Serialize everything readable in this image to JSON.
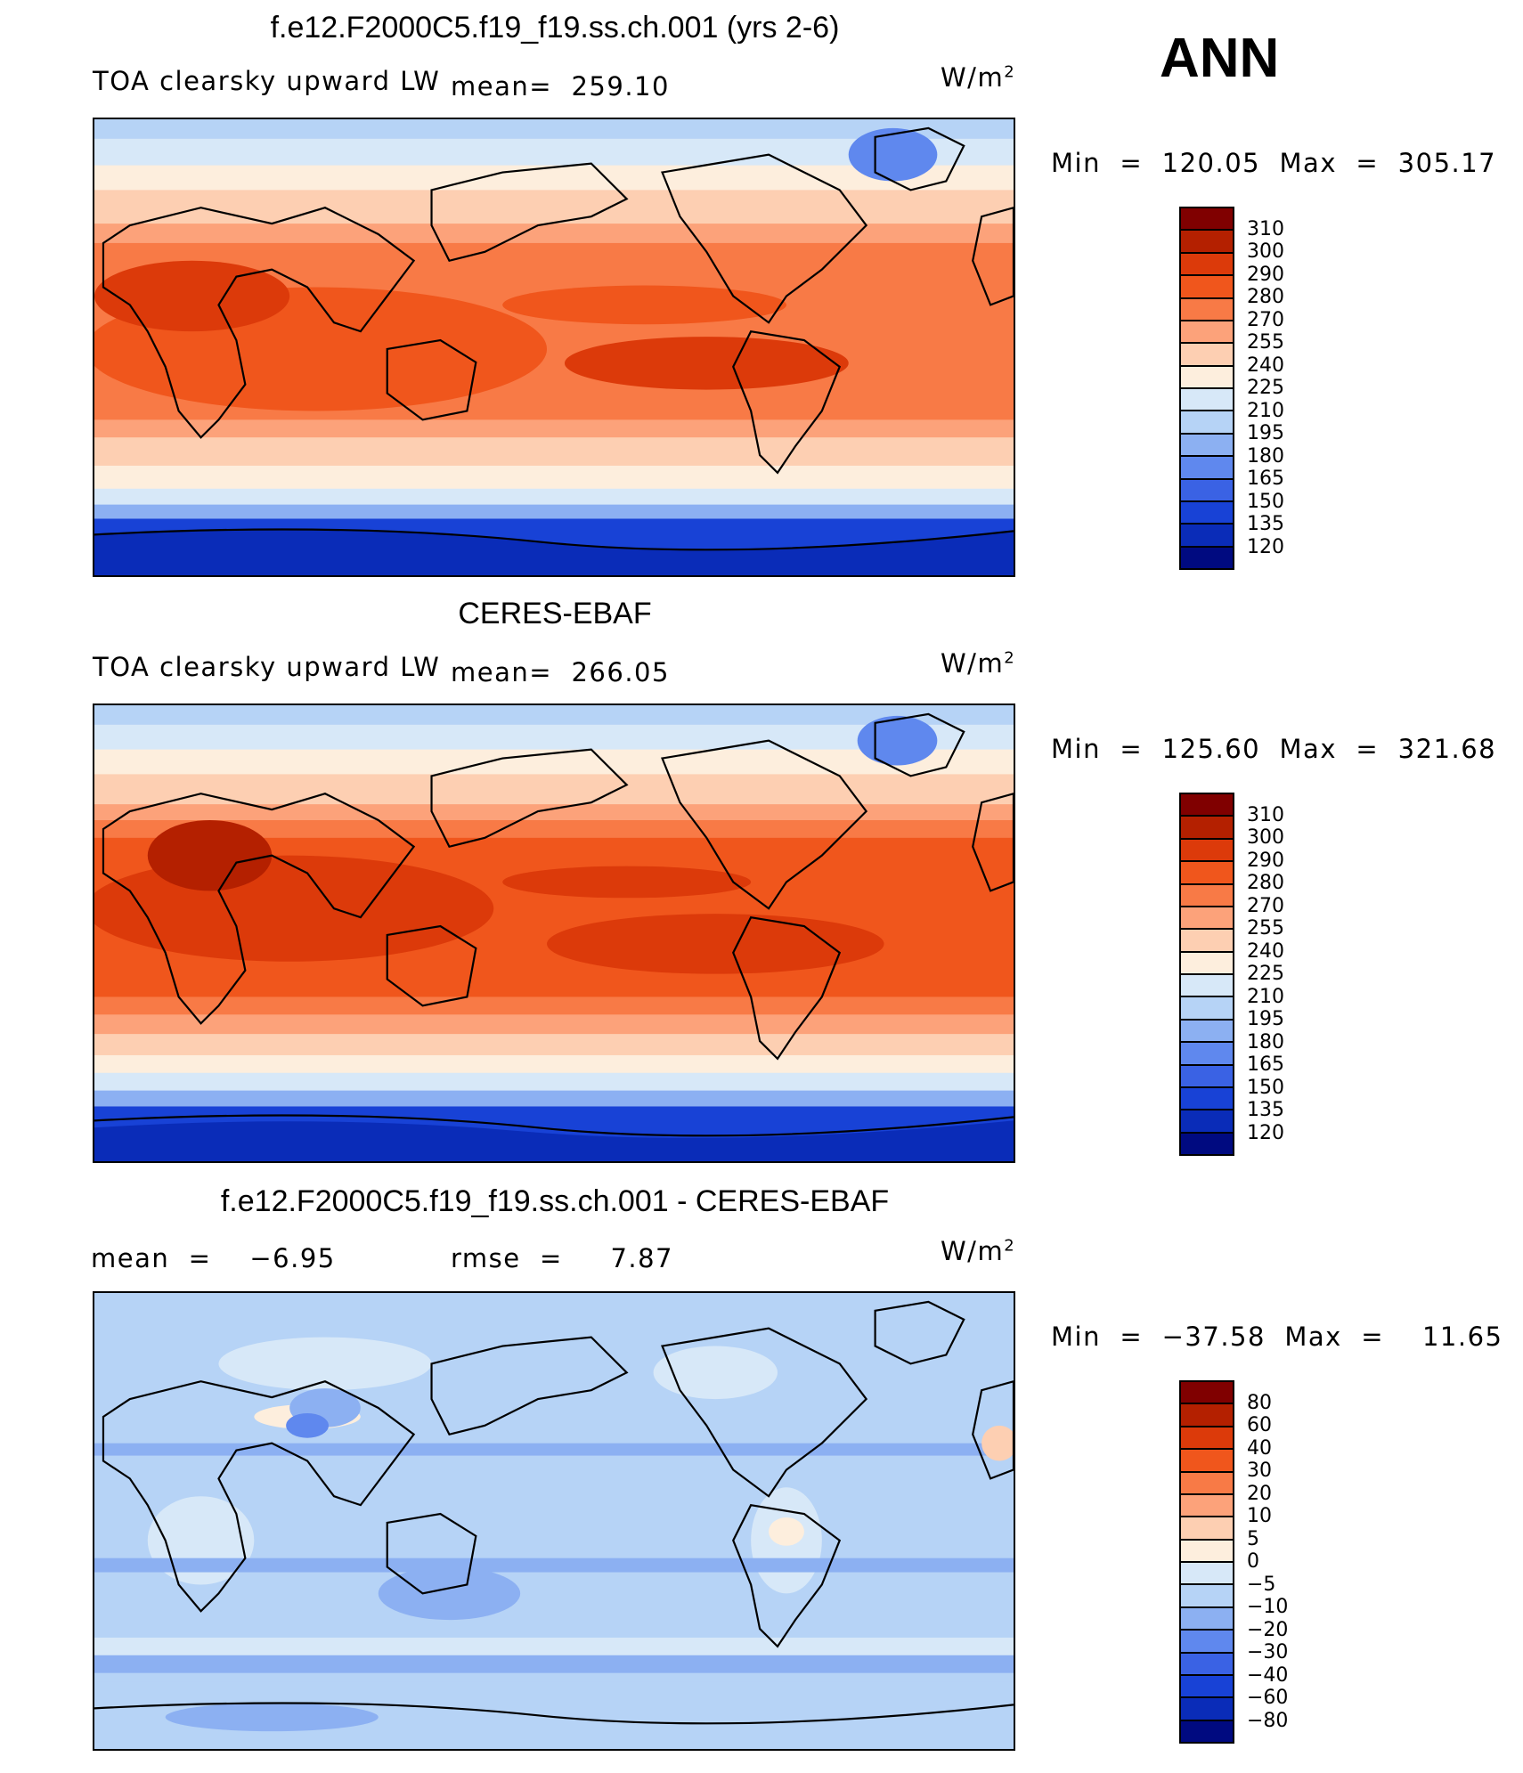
{
  "season": "ANN",
  "panel1": {
    "title": "f.e12.F2000C5.f19_f19.ss.ch.001 (yrs 2-6)",
    "variable": "TOA clearsky upward LW",
    "mean": "mean=  259.10",
    "units": "W/m",
    "units_sup": "2",
    "minmax": "Min  =  120.05  Max  =  305.17",
    "levels": [
      "310",
      "300",
      "290",
      "280",
      "270",
      "255",
      "240",
      "225",
      "210",
      "195",
      "180",
      "165",
      "150",
      "135",
      "120"
    ],
    "colors": [
      "#800000",
      "#b42000",
      "#dc3a0a",
      "#f0561c",
      "#f87a46",
      "#fca27a",
      "#fdcfb2",
      "#fdeedd",
      "#d7e8f8",
      "#b6d3f6",
      "#8cb0f2",
      "#5f88ee",
      "#3a62e4",
      "#1842d6",
      "#0a2cb8",
      "#000a80"
    ]
  },
  "panel2": {
    "title": "CERES-EBAF",
    "variable": "TOA clearsky upward LW",
    "mean": "mean=  266.05",
    "units": "W/m",
    "units_sup": "2",
    "minmax": "Min  =  125.60  Max  =  321.68",
    "levels": [
      "310",
      "300",
      "290",
      "280",
      "270",
      "255",
      "240",
      "225",
      "210",
      "195",
      "180",
      "165",
      "150",
      "135",
      "120"
    ],
    "colors": [
      "#800000",
      "#b42000",
      "#dc3a0a",
      "#f0561c",
      "#f87a46",
      "#fca27a",
      "#fdcfb2",
      "#fdeedd",
      "#d7e8f8",
      "#b6d3f6",
      "#8cb0f2",
      "#5f88ee",
      "#3a62e4",
      "#1842d6",
      "#0a2cb8",
      "#000a80"
    ]
  },
  "panel3": {
    "title": "f.e12.F2000C5.f19_f19.ss.ch.001 - CERES-EBAF",
    "mean": "mean  =    −6.95",
    "rmse": "rmse  =     7.87",
    "units": "W/m",
    "units_sup": "2",
    "minmax": "Min  =  −37.58  Max  =    11.65",
    "levels": [
      "80",
      "60",
      "40",
      "30",
      "20",
      "10",
      "5",
      "0",
      "−5",
      "−10",
      "−20",
      "−30",
      "−40",
      "−60",
      "−80"
    ],
    "colors": [
      "#800000",
      "#b42000",
      "#dc3a0a",
      "#f0561c",
      "#f87a46",
      "#fca27a",
      "#fdcfb2",
      "#fdeedd",
      "#d7e8f8",
      "#b6d3f6",
      "#8cb0f2",
      "#5f88ee",
      "#3a62e4",
      "#1842d6",
      "#0a2cb8",
      "#000a80"
    ]
  }
}
